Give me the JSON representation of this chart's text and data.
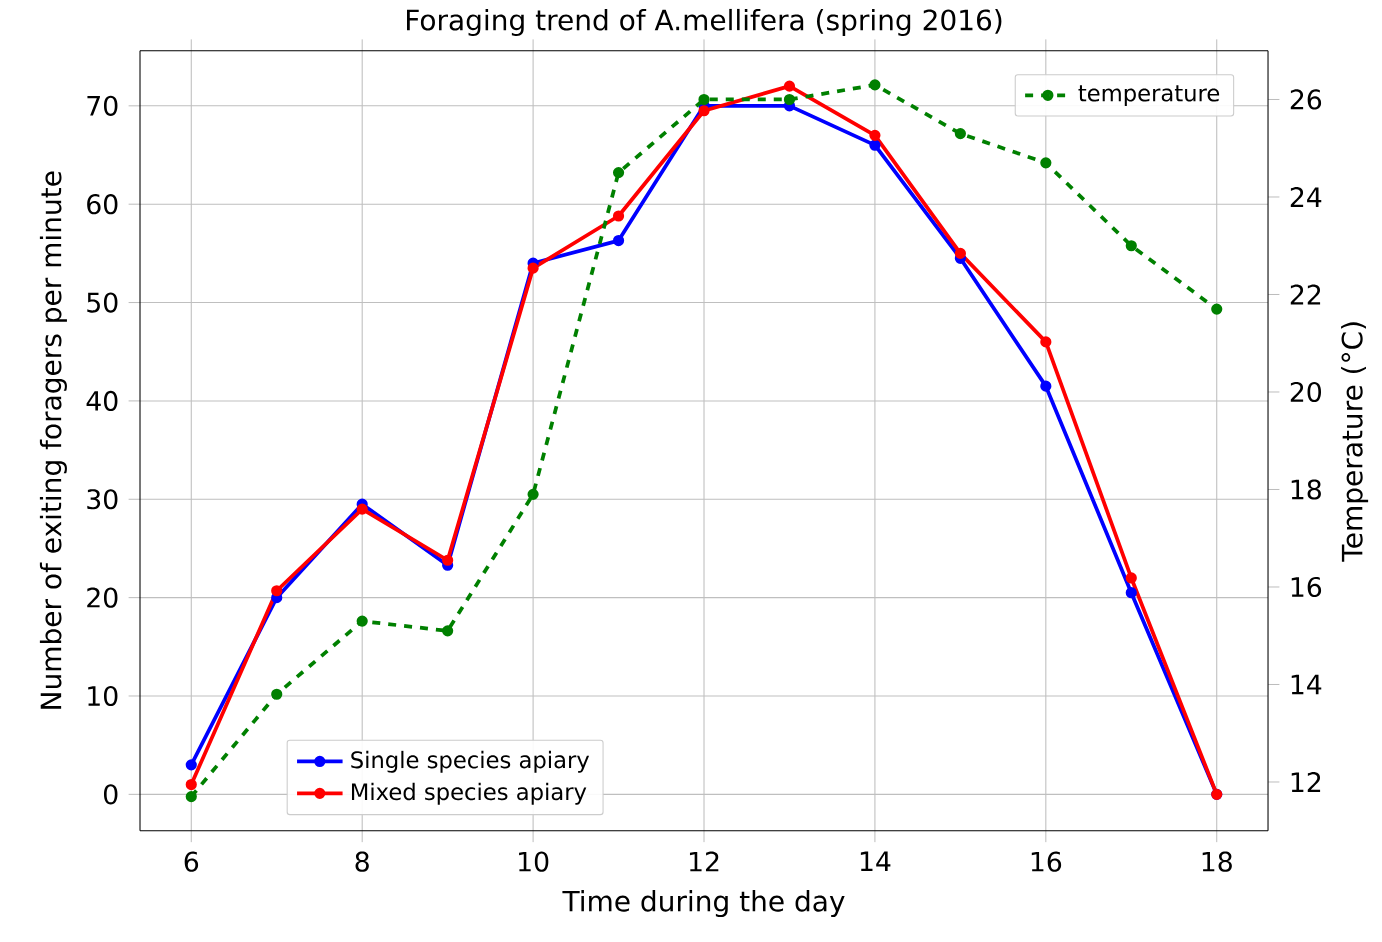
{
  "chart_data": {
    "type": "line",
    "title": "Foraging trend of A.mellifera (spring 2016)",
    "xlabel": "Time during the day",
    "ylabel": "Number of exiting foragers per minute",
    "y2label": "Temperature (°C)",
    "x": [
      6,
      7,
      8,
      9,
      10,
      11,
      12,
      13,
      14,
      15,
      16,
      17,
      18
    ],
    "series": [
      {
        "name": "Single species apiary",
        "color": "#0000ff",
        "line_style": "solid",
        "values": [
          3,
          20,
          29.5,
          23.3,
          54,
          56.3,
          70,
          70,
          66,
          54.5,
          41.5,
          20.5,
          0
        ]
      },
      {
        "name": "Mixed species apiary",
        "color": "#ff0000",
        "line_style": "solid",
        "values": [
          1,
          20.7,
          29,
          23.8,
          53.5,
          58.8,
          69.5,
          72,
          67,
          55,
          46,
          22,
          0
        ]
      },
      {
        "name": "temperature",
        "color": "#008000",
        "line_style": "dashed",
        "axis": "y2",
        "values": [
          11.7,
          13.8,
          15.3,
          15.1,
          17.9,
          24.5,
          26,
          26,
          26.3,
          25.3,
          24.7,
          23,
          21.7
        ]
      }
    ],
    "xlim": [
      5.4,
      18.6
    ],
    "xticks": [
      6,
      8,
      10,
      12,
      14,
      16,
      18
    ],
    "ylim": [
      -3.7,
      75.6
    ],
    "yticks": [
      0,
      10,
      20,
      30,
      40,
      50,
      60,
      70
    ],
    "y2lim": [
      11,
      27
    ],
    "y2ticks": [
      12,
      14,
      16,
      18,
      20,
      22,
      24,
      26
    ],
    "grid": true,
    "legend": "bottom left",
    "marker": "circle"
  }
}
